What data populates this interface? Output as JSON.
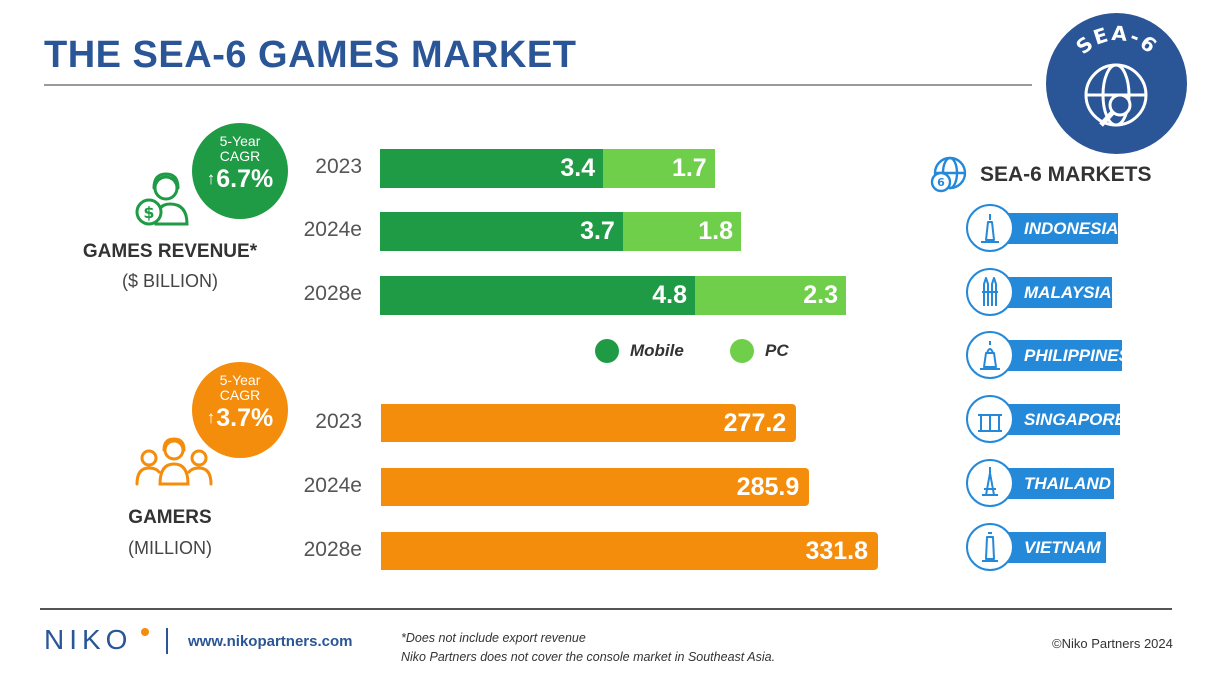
{
  "header": {
    "title": "THE SEA-6 GAMES MARKET",
    "badge_text": "SEA-6"
  },
  "colors": {
    "mobile": "#1f9a45",
    "pc": "#6fcf4a",
    "gamers": "#f48c0c",
    "brand": "#2a5596",
    "market": "#2589da"
  },
  "revenue": {
    "title": "GAMES REVENUE*",
    "subtitle": "($ BILLION)",
    "cagr": {
      "line1": "5-Year",
      "line2": "CAGR",
      "arrow": "↑",
      "value": "6.7%"
    }
  },
  "gamers": {
    "title": "GAMERS",
    "subtitle": "(MILLION)",
    "cagr": {
      "line1": "5-Year",
      "line2": "CAGR",
      "arrow": "↑",
      "value": "3.7%"
    }
  },
  "legend": {
    "mobile": "Mobile",
    "pc": "PC"
  },
  "markets": {
    "title": "SEA-6 MARKETS",
    "items": [
      "INDONESIA",
      "MALAYSIA",
      "PHILIPPINES",
      "SINGAPORE",
      "THAILAND",
      "VIETNAM"
    ]
  },
  "footer": {
    "logo": "NIKO",
    "website": "www.nikopartners.com",
    "note1": "*Does not include export revenue",
    "note2": "Niko Partners does not cover the console market in Southeast Asia.",
    "copyright": "©Niko Partners 2024"
  },
  "chart_data": [
    {
      "type": "bar",
      "orientation": "horizontal",
      "stacked": true,
      "title": "GAMES REVENUE* ($ BILLION)",
      "categories": [
        "2023",
        "2024e",
        "2028e"
      ],
      "series": [
        {
          "name": "Mobile",
          "values": [
            3.4,
            3.7,
            4.8
          ],
          "labels": [
            "3.4",
            "3.7",
            "4.8"
          ]
        },
        {
          "name": "PC",
          "values": [
            1.7,
            1.8,
            2.3
          ],
          "labels": [
            "1.7",
            "1.8",
            "2.3"
          ]
        }
      ]
    },
    {
      "type": "bar",
      "orientation": "horizontal",
      "title": "GAMERS (MILLION)",
      "categories": [
        "2023",
        "2024e",
        "2028e"
      ],
      "series": [
        {
          "name": "Gamers",
          "values": [
            277.2,
            285.9,
            331.8
          ],
          "labels": [
            "277.2",
            "285.9",
            "331.8"
          ]
        }
      ]
    }
  ]
}
